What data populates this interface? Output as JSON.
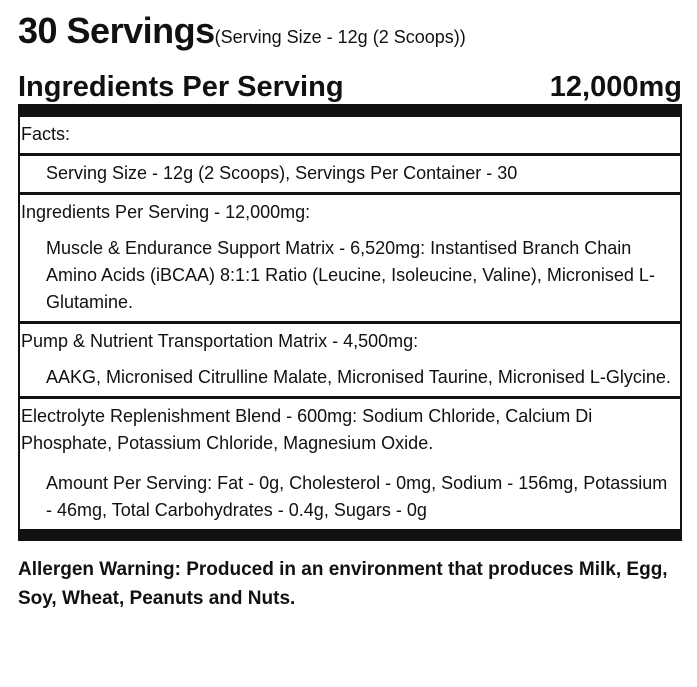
{
  "title": {
    "servings": "30 Servings",
    "serving_size": "(Serving Size - 12g (2 Scoops))"
  },
  "header": {
    "label": "Ingredients Per Serving",
    "amount": "12,000mg"
  },
  "rows": {
    "facts_label": "Facts:",
    "serving_info": "Serving Size - 12g (2 Scoops), Servings Per Container - 30",
    "ingredients_heading": "Ingredients Per Serving - 12,000mg:",
    "muscle_matrix": "Muscle & Endurance Support Matrix - 6,520mg: Instantised Branch Chain Amino Acids (iBCAA) 8:1:1 Ratio (Leucine, Isoleucine, Valine), Micronised L-Glutamine.",
    "pump_matrix_heading": "Pump & Nutrient Transportation Matrix - 4,500mg:",
    "pump_matrix_ingredients": "AAKG, Micronised Citrulline Malate, Micronised Taurine, Micronised L-Glycine.",
    "electrolyte_blend": "Electrolyte Replenishment Blend - 600mg: Sodium Chloride, Calcium Di Phosphate, Potassium Chloride, Magnesium Oxide.",
    "amount_per_serving": "Amount Per Serving: Fat - 0g, Cholesterol - 0mg, Sodium - 156mg, Potassium - 46mg, Total Carbohydrates - 0.4g, Sugars - 0g"
  },
  "allergen": {
    "warning": "Allergen Warning: Produced in an environment that produces Milk, Egg, Soy, Wheat, Peanuts and Nuts."
  }
}
